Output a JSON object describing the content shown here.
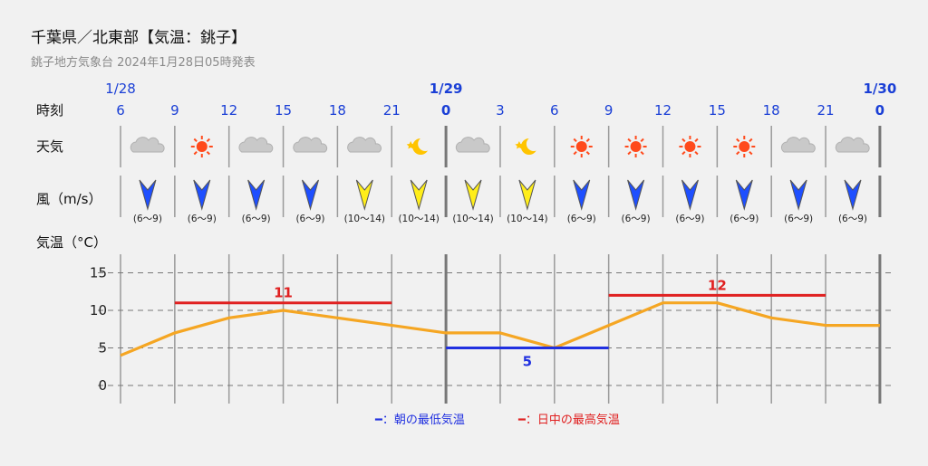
{
  "header": {
    "title": "千葉県／北東部【気温：銚子】",
    "subtitle": "銚子地方気象台 2024年1月28日05時発表"
  },
  "row_labels": {
    "time": "時刻",
    "weather": "天気",
    "wind": "風（m/s）",
    "temp": "気温（°C）"
  },
  "legend": {
    "min_label": "━：朝の最低気温",
    "max_label": "━：日中の最高気温"
  },
  "colors": {
    "date_blue": "#1a3fd6",
    "temp_line": "#f5a623",
    "max_red": "#e02020",
    "min_blue": "#2030e0",
    "wind_blue": "#1e4fff",
    "wind_yellow": "#ffee1a"
  },
  "chart_data": {
    "type": "line",
    "x": [
      "1/28 6",
      "9",
      "12",
      "15",
      "18",
      "21",
      "1/29 0",
      "3",
      "6",
      "9",
      "12",
      "15",
      "18",
      "21",
      "1/30 0"
    ],
    "time_ticks": [
      "6",
      "9",
      "12",
      "15",
      "18",
      "21",
      "0",
      "3",
      "6",
      "9",
      "12",
      "15",
      "18",
      "21",
      "0"
    ],
    "date_marks": [
      {
        "index": 0,
        "label": "1/28"
      },
      {
        "index": 6,
        "label": "1/29"
      },
      {
        "index": 14,
        "label": "1/30"
      }
    ],
    "weather_icons": [
      "cloud-icon",
      "sun-icon",
      "cloud-icon",
      "cloud-icon",
      "cloud-icon",
      "moon-icon",
      "cloud-icon",
      "moon-icon",
      "sun-icon",
      "sun-icon",
      "sun-icon",
      "sun-icon",
      "cloud-icon",
      "cloud-icon"
    ],
    "wind": [
      {
        "speed": "(6〜9)",
        "color": "blue"
      },
      {
        "speed": "(6〜9)",
        "color": "blue"
      },
      {
        "speed": "(6〜9)",
        "color": "blue"
      },
      {
        "speed": "(6〜9)",
        "color": "blue"
      },
      {
        "speed": "(10〜14)",
        "color": "yellow"
      },
      {
        "speed": "(10〜14)",
        "color": "yellow"
      },
      {
        "speed": "(10〜14)",
        "color": "yellow"
      },
      {
        "speed": "(10〜14)",
        "color": "yellow"
      },
      {
        "speed": "(6〜9)",
        "color": "blue"
      },
      {
        "speed": "(6〜9)",
        "color": "blue"
      },
      {
        "speed": "(6〜9)",
        "color": "blue"
      },
      {
        "speed": "(6〜9)",
        "color": "blue"
      },
      {
        "speed": "(6〜9)",
        "color": "blue"
      },
      {
        "speed": "(6〜9)",
        "color": "blue"
      }
    ],
    "series": [
      {
        "values": [
          4,
          7,
          9,
          10,
          9,
          8,
          7,
          7,
          5,
          8,
          11,
          11,
          9,
          8,
          8
        ]
      }
    ],
    "daily_max": [
      {
        "value": 11,
        "label": "11",
        "from": 1,
        "to": 5
      },
      {
        "value": 12,
        "label": "12",
        "from": 9,
        "to": 13
      }
    ],
    "daily_min": [
      {
        "value": 5,
        "label": "5",
        "from": 6,
        "to": 9
      }
    ],
    "yticks": [
      "0",
      "5",
      "10",
      "15"
    ],
    "ylim": [
      -2,
      17
    ],
    "grid": true
  }
}
